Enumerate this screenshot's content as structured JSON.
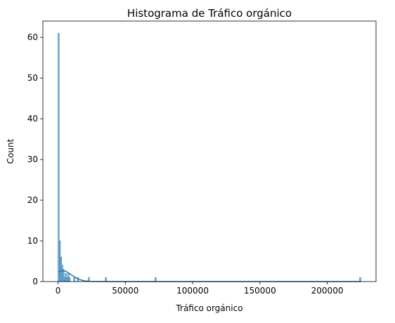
{
  "chart_data": {
    "type": "bar",
    "title": "Histograma de Tráfico orgánico",
    "xlabel": "Tráfico orgánico",
    "ylabel": "Count",
    "xlim": [
      -11250,
      236250
    ],
    "ylim": [
      0,
      64
    ],
    "x_ticks": [
      0,
      50000,
      100000,
      150000,
      200000
    ],
    "x_tick_labels": [
      "0",
      "50000",
      "100000",
      "150000",
      "200000"
    ],
    "y_ticks": [
      0,
      10,
      20,
      30,
      40,
      50,
      60
    ],
    "y_tick_labels": [
      "0",
      "10",
      "20",
      "30",
      "40",
      "50",
      "60"
    ],
    "grid": false,
    "bar_color": "#1f77b4",
    "bins": [
      {
        "x0": 0,
        "x1": 900,
        "count": 61
      },
      {
        "x0": 900,
        "x1": 1800,
        "count": 10
      },
      {
        "x0": 1800,
        "x1": 2700,
        "count": 6
      },
      {
        "x0": 2700,
        "x1": 3600,
        "count": 4
      },
      {
        "x0": 3600,
        "x1": 4500,
        "count": 3
      },
      {
        "x0": 4500,
        "x1": 5400,
        "count": 1
      },
      {
        "x0": 5400,
        "x1": 6300,
        "count": 2
      },
      {
        "x0": 6300,
        "x1": 7200,
        "count": 1
      },
      {
        "x0": 7200,
        "x1": 8100,
        "count": 2
      },
      {
        "x0": 8100,
        "x1": 9000,
        "count": 1
      },
      {
        "x0": 11700,
        "x1": 12600,
        "count": 1
      },
      {
        "x0": 14400,
        "x1": 15300,
        "count": 1
      },
      {
        "x0": 22500,
        "x1": 23400,
        "count": 1
      },
      {
        "x0": 35100,
        "x1": 36000,
        "count": 1
      },
      {
        "x0": 72000,
        "x1": 72900,
        "count": 1
      },
      {
        "x0": 224100,
        "x1": 225000,
        "count": 1
      }
    ],
    "kde": {
      "x": [
        0,
        2000,
        4000,
        6000,
        8000,
        10000,
        12000,
        14000,
        16000,
        18000,
        20000,
        24000,
        30000,
        40000,
        60000,
        100000,
        150000,
        225000
      ],
      "y": [
        2.4,
        2.6,
        2.7,
        2.5,
        2.1,
        1.6,
        1.2,
        0.8,
        0.5,
        0.3,
        0.15,
        0.05,
        0.02,
        0.01,
        0.005,
        0.002,
        0.001,
        0.001
      ]
    }
  }
}
